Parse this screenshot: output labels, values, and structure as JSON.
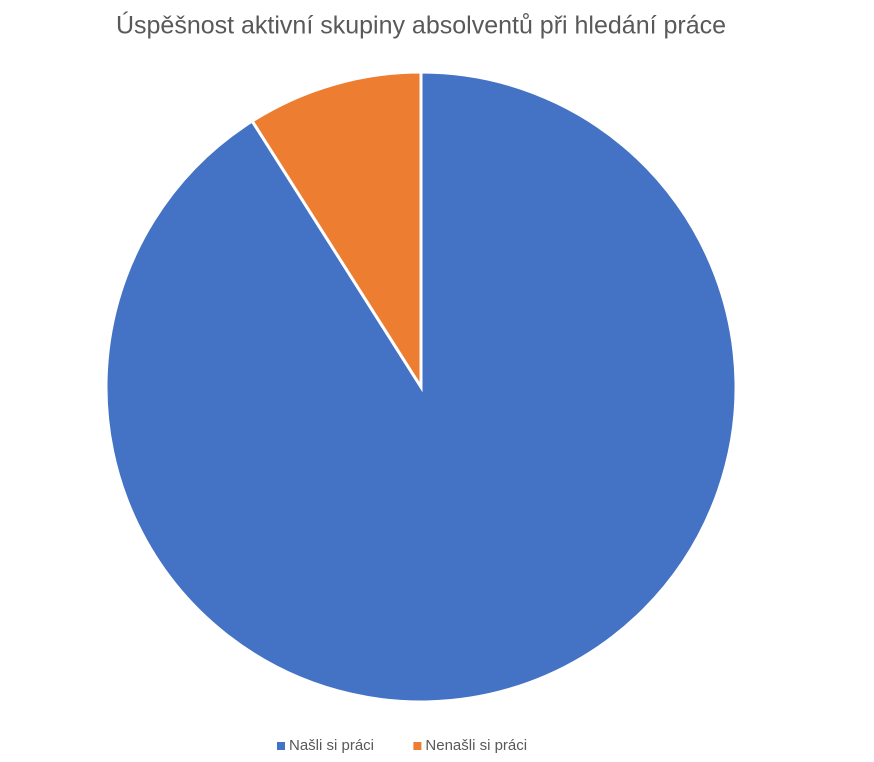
{
  "chart_data": {
    "type": "pie",
    "title": "Úspěšnost aktivní skupiny absolventů při hledání práce",
    "categories": [
      "Našli si práci",
      "Nenašli si práci"
    ],
    "values": [
      91,
      9
    ],
    "colors": [
      "#4472c4",
      "#ed7d31"
    ],
    "legend": "bottom"
  }
}
